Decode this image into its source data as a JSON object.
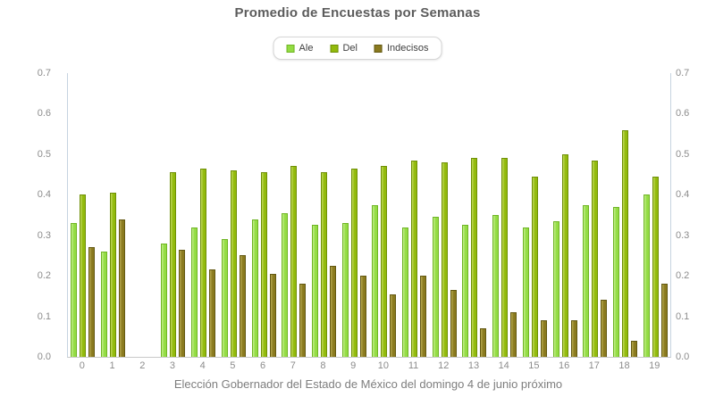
{
  "chart_data": {
    "type": "bar",
    "title": "Promedio de Encuestas por Semanas",
    "xlabel": "Elección Gobernador del Estado de México del domingo 4 de junio próximo",
    "ylabel": "",
    "ylim": [
      0,
      0.7
    ],
    "ytick_step": 0.1,
    "yticks": [
      "0.0",
      "0.1",
      "0.2",
      "0.3",
      "0.4",
      "0.5",
      "0.6",
      "0.7"
    ],
    "dual_y_axis": true,
    "grid": false,
    "legend_position": "top",
    "categories": [
      "0",
      "1",
      "2",
      "3",
      "4",
      "5",
      "6",
      "7",
      "8",
      "9",
      "10",
      "11",
      "12",
      "13",
      "14",
      "15",
      "16",
      "17",
      "18",
      "19"
    ],
    "series": [
      {
        "name": "Ale",
        "fill": "#93DC43",
        "highlight": "#C3EE8C",
        "border": "#6FB424",
        "values": [
          0.33,
          0.26,
          null,
          0.28,
          0.32,
          0.29,
          0.34,
          0.355,
          0.325,
          0.33,
          0.375,
          0.32,
          0.345,
          0.325,
          0.35,
          0.32,
          0.335,
          0.375,
          0.37,
          0.4
        ]
      },
      {
        "name": "Del",
        "fill": "#92BA0C",
        "highlight": "#C0D95B",
        "border": "#6E8F06",
        "values": [
          0.4,
          0.405,
          null,
          0.455,
          0.465,
          0.46,
          0.455,
          0.47,
          0.455,
          0.465,
          0.47,
          0.485,
          0.48,
          0.49,
          0.49,
          0.445,
          0.5,
          0.485,
          0.56,
          0.445
        ]
      },
      {
        "name": "Indecisos",
        "fill": "#8A7A1F",
        "highlight": "#B7A94F",
        "border": "#635812",
        "values": [
          0.27,
          0.34,
          null,
          0.265,
          0.215,
          0.25,
          0.205,
          0.18,
          0.225,
          0.2,
          0.155,
          0.2,
          0.165,
          0.07,
          0.11,
          0.09,
          0.09,
          0.14,
          0.04,
          0.18
        ]
      }
    ]
  },
  "colors": {
    "title_text": "#5c5c5c",
    "axis_label_text": "#8c8c8c",
    "x_title_text": "#7e7e7e",
    "legend_text": "#3f3f3f",
    "axis_line_vertical": "#c6d3e0",
    "axis_line_bottom": "#c9c9c9",
    "legend_border": "#d6d6d6",
    "background": "#ffffff"
  }
}
